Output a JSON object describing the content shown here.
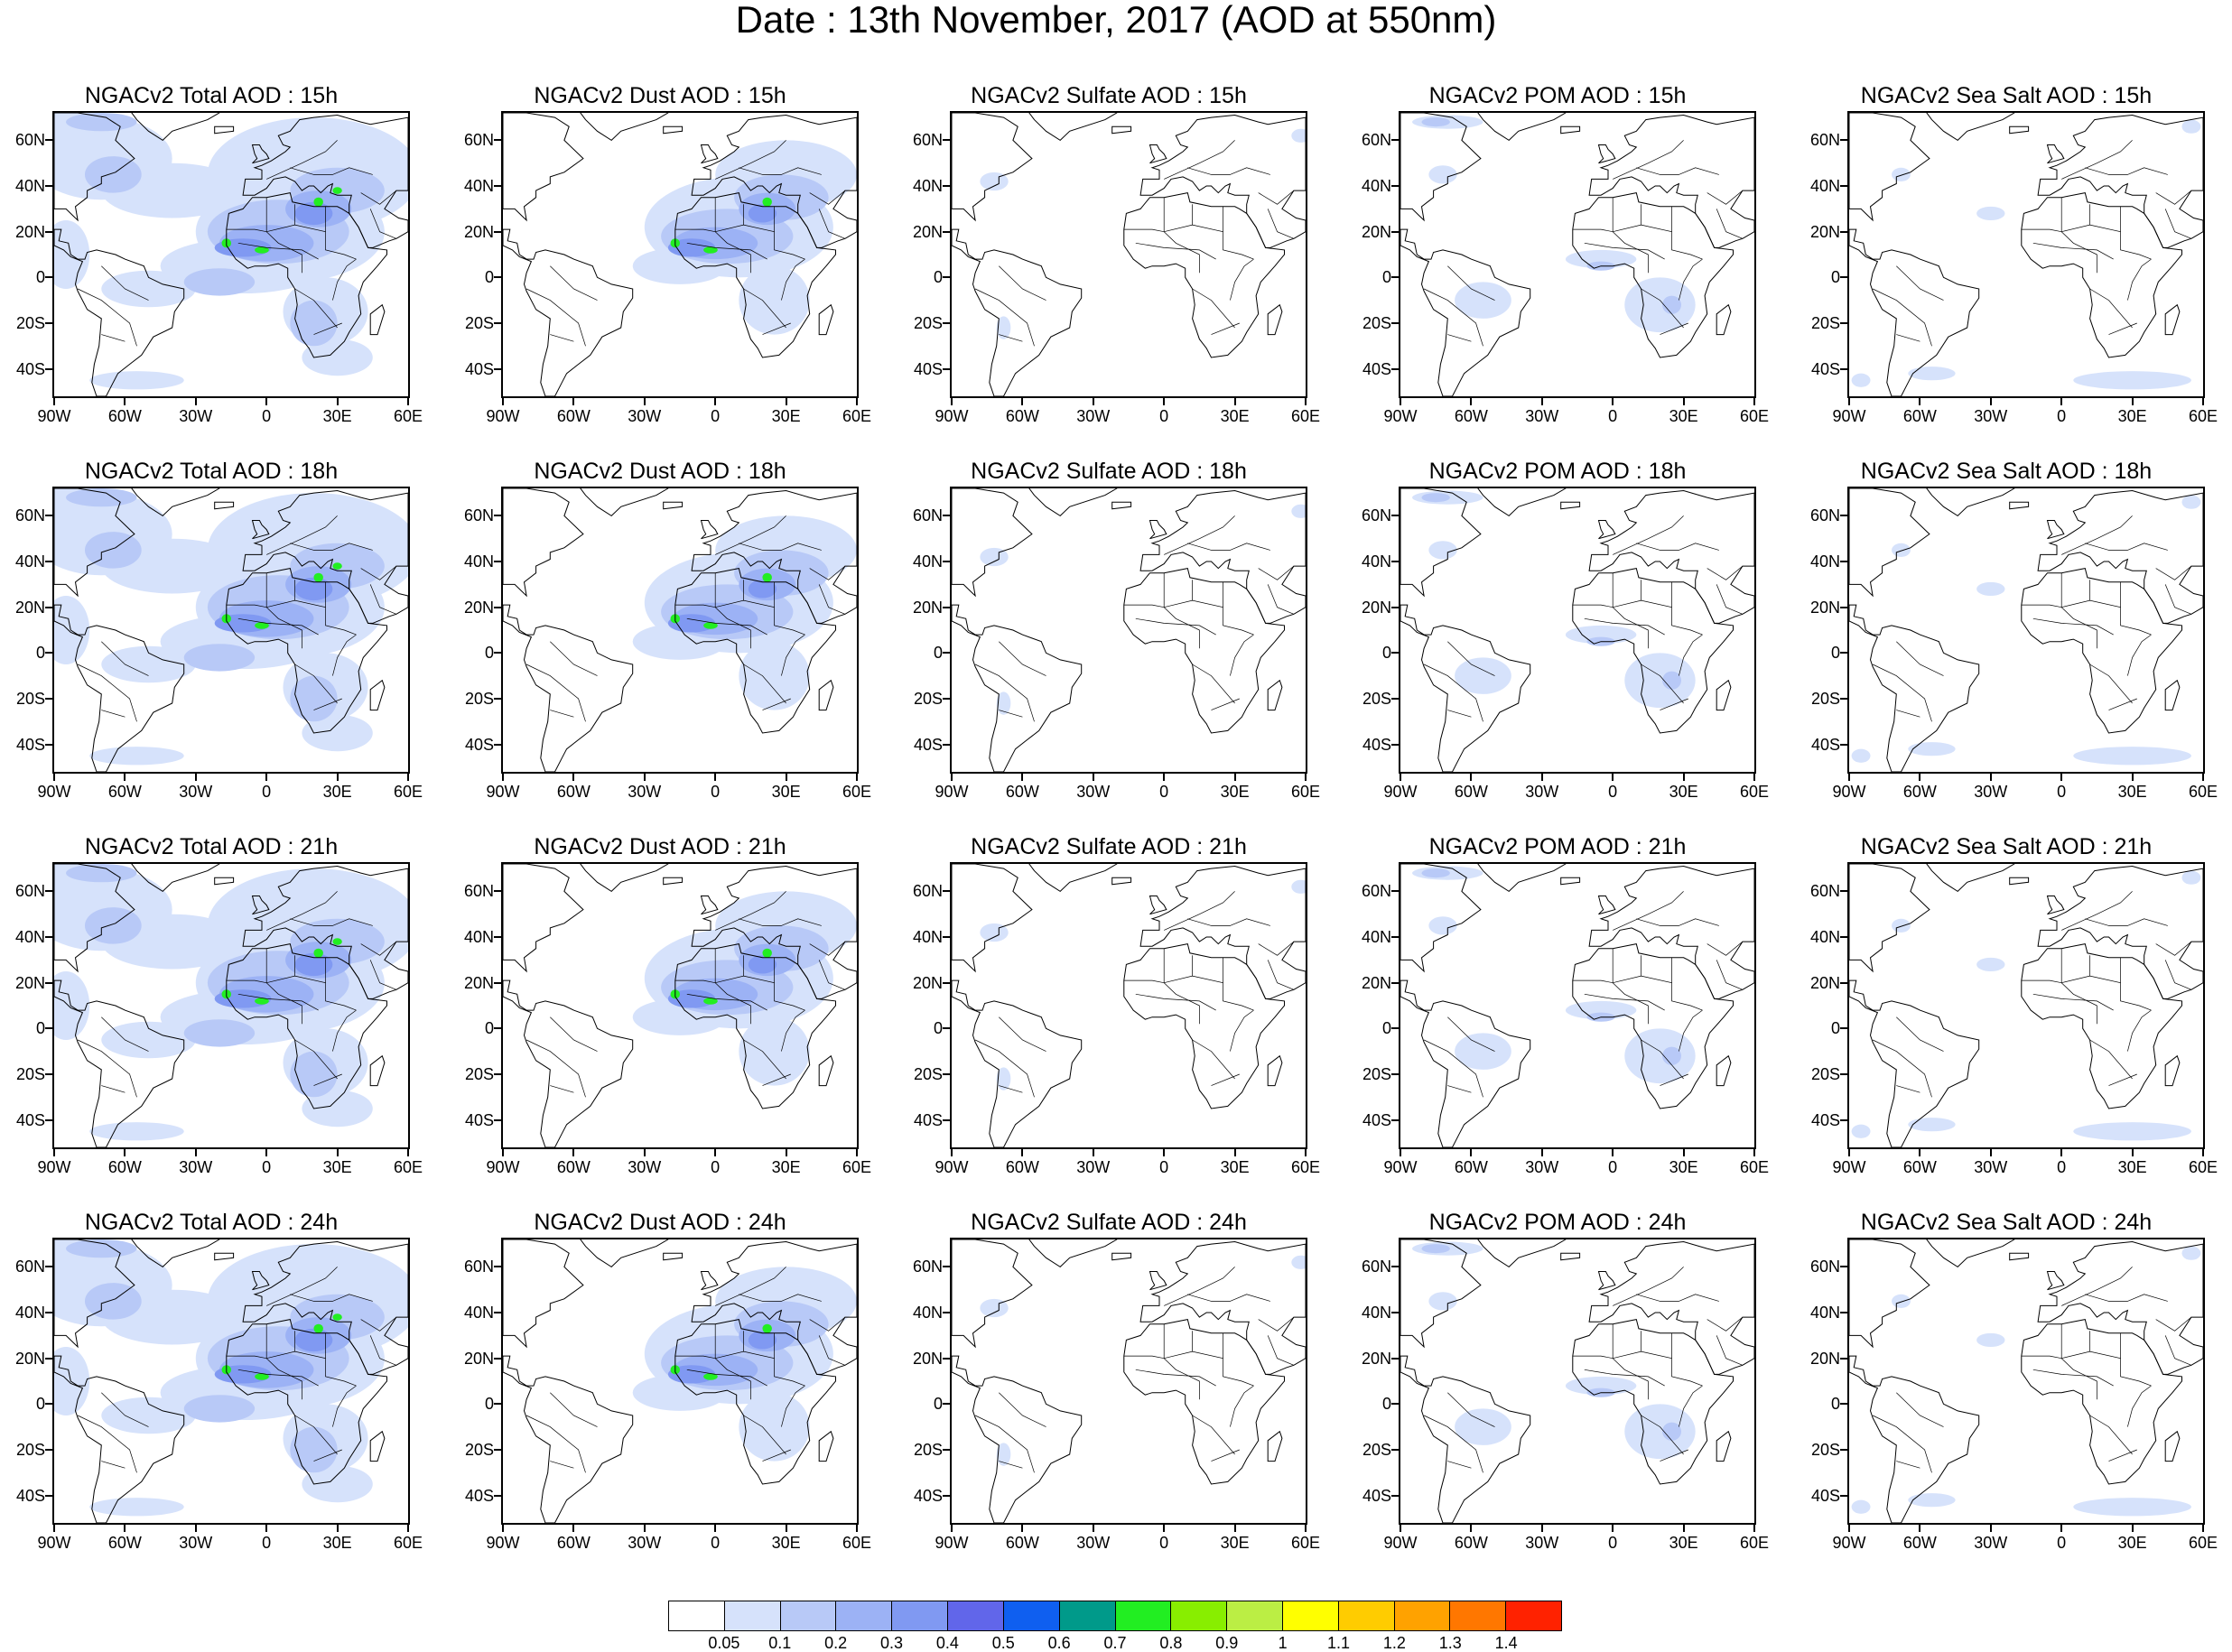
{
  "title": "Date : 13th November, 2017 (AOD at 550nm)",
  "map_axes": {
    "lat_labels": [
      "60N",
      "40N",
      "20N",
      "0",
      "20S",
      "40S"
    ],
    "lon_labels": [
      "90W",
      "60W",
      "30W",
      "0",
      "30E",
      "60E"
    ],
    "lat_values": [
      60,
      40,
      20,
      0,
      -20,
      -40
    ],
    "lon_values": [
      -90,
      -60,
      -30,
      0,
      30,
      60
    ],
    "lat_range": [
      -52,
      72
    ],
    "lon_range": [
      -90,
      60
    ]
  },
  "species": [
    "Total",
    "Dust",
    "Sulfate",
    "POM",
    "Sea Salt"
  ],
  "forecast_hours": [
    "15h",
    "18h",
    "21h",
    "24h"
  ],
  "panels": [
    {
      "title": "NGACv2 Total AOD : 15h",
      "species": "Total",
      "hour": "15h"
    },
    {
      "title": "NGACv2 Dust AOD : 15h",
      "species": "Dust",
      "hour": "15h"
    },
    {
      "title": "NGACv2 Sulfate AOD : 15h",
      "species": "Sulfate",
      "hour": "15h"
    },
    {
      "title": "NGACv2 POM AOD : 15h",
      "species": "POM",
      "hour": "15h"
    },
    {
      "title": "NGACv2 Sea Salt AOD : 15h",
      "species": "Sea Salt",
      "hour": "15h"
    },
    {
      "title": "NGACv2 Total AOD : 18h",
      "species": "Total",
      "hour": "18h"
    },
    {
      "title": "NGACv2 Dust AOD : 18h",
      "species": "Dust",
      "hour": "18h"
    },
    {
      "title": "NGACv2 Sulfate AOD : 18h",
      "species": "Sulfate",
      "hour": "18h"
    },
    {
      "title": "NGACv2 POM AOD : 18h",
      "species": "POM",
      "hour": "18h"
    },
    {
      "title": "NGACv2 Sea Salt AOD : 18h",
      "species": "Sea Salt",
      "hour": "18h"
    },
    {
      "title": "NGACv2 Total AOD : 21h",
      "species": "Total",
      "hour": "21h"
    },
    {
      "title": "NGACv2 Dust AOD : 21h",
      "species": "Dust",
      "hour": "21h"
    },
    {
      "title": "NGACv2 Sulfate AOD : 21h",
      "species": "Sulfate",
      "hour": "21h"
    },
    {
      "title": "NGACv2 POM AOD : 21h",
      "species": "POM",
      "hour": "21h"
    },
    {
      "title": "NGACv2 Sea Salt AOD : 21h",
      "species": "Sea Salt",
      "hour": "21h"
    },
    {
      "title": "NGACv2 Total AOD : 24h",
      "species": "Total",
      "hour": "24h"
    },
    {
      "title": "NGACv2 Dust AOD : 24h",
      "species": "Dust",
      "hour": "24h"
    },
    {
      "title": "NGACv2 Sulfate AOD : 24h",
      "species": "Sulfate",
      "hour": "24h"
    },
    {
      "title": "NGACv2 POM AOD : 24h",
      "species": "POM",
      "hour": "24h"
    },
    {
      "title": "NGACv2 Sea Salt  AOD : 24h",
      "species": "Sea Salt",
      "hour": "24h"
    }
  ],
  "colorbar": {
    "labels": [
      "0.05",
      "0.1",
      "0.2",
      "0.3",
      "0.4",
      "0.5",
      "0.6",
      "0.7",
      "0.8",
      "0.9",
      "1",
      "1.1",
      "1.2",
      "1.3",
      "1.4"
    ],
    "colors": [
      "#ffffff",
      "#d6e2fb",
      "#b8c9f7",
      "#9cb2f5",
      "#8099f2",
      "#6166ea",
      "#0f5ff0",
      "#009a8a",
      "#22ee22",
      "#88ee00",
      "#bbee44",
      "#ffff00",
      "#ffcc00",
      "#ffa200",
      "#ff7700",
      "#ff2200"
    ]
  }
}
